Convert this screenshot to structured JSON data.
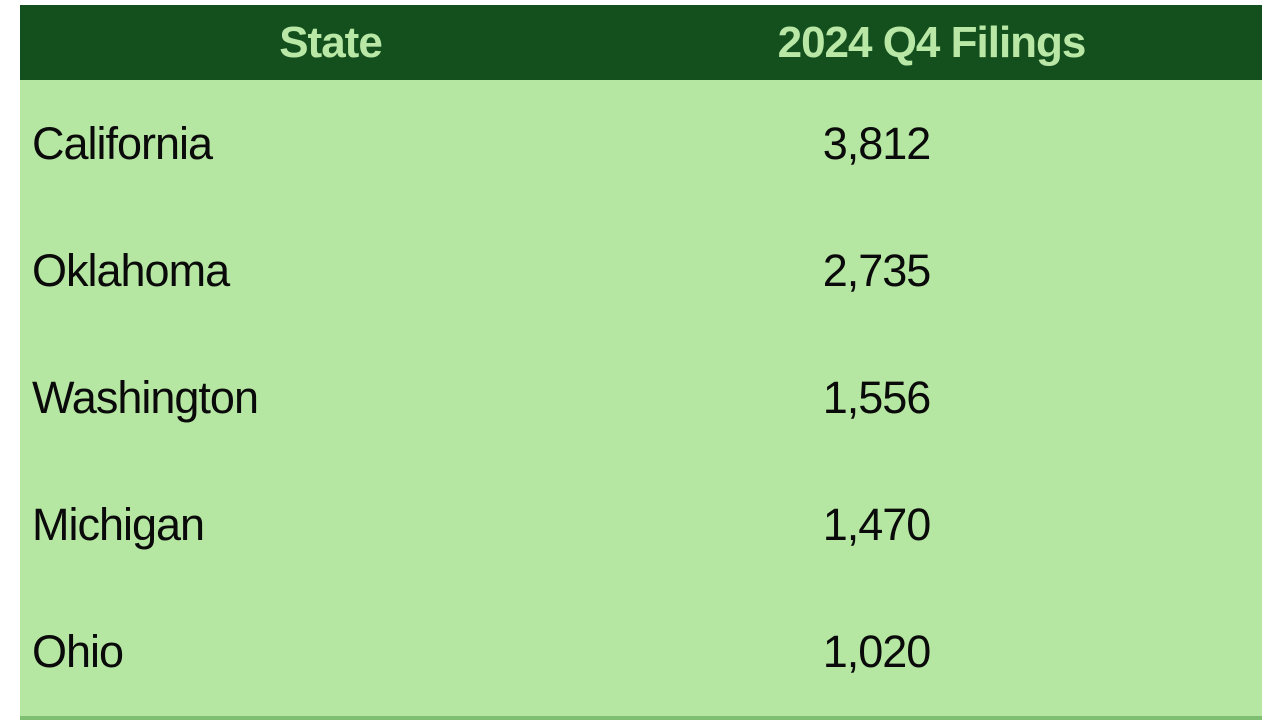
{
  "table": {
    "columns": [
      {
        "label": "State"
      },
      {
        "label": "2024 Q4 Filings"
      }
    ],
    "rows": [
      {
        "state": "California",
        "filings": "3,812"
      },
      {
        "state": "Oklahoma",
        "filings": "2,735"
      },
      {
        "state": "Washington",
        "filings": "1,556"
      },
      {
        "state": "Michigan",
        "filings": "1,470"
      },
      {
        "state": "Ohio",
        "filings": "1,020"
      }
    ]
  },
  "colors": {
    "header_bg": "#14501e",
    "header_text": "#b9e7a6",
    "body_bg": "#b5e6a2",
    "body_text": "#0a0a0a",
    "bottom_border": "#7fbf72",
    "page_bg": "#ffffff"
  },
  "chart_data": {
    "type": "table",
    "title": "",
    "columns": [
      "State",
      "2024 Q4 Filings"
    ],
    "categories": [
      "California",
      "Oklahoma",
      "Washington",
      "Michigan",
      "Ohio"
    ],
    "values": [
      3812,
      2735,
      1556,
      1470,
      1020
    ]
  }
}
